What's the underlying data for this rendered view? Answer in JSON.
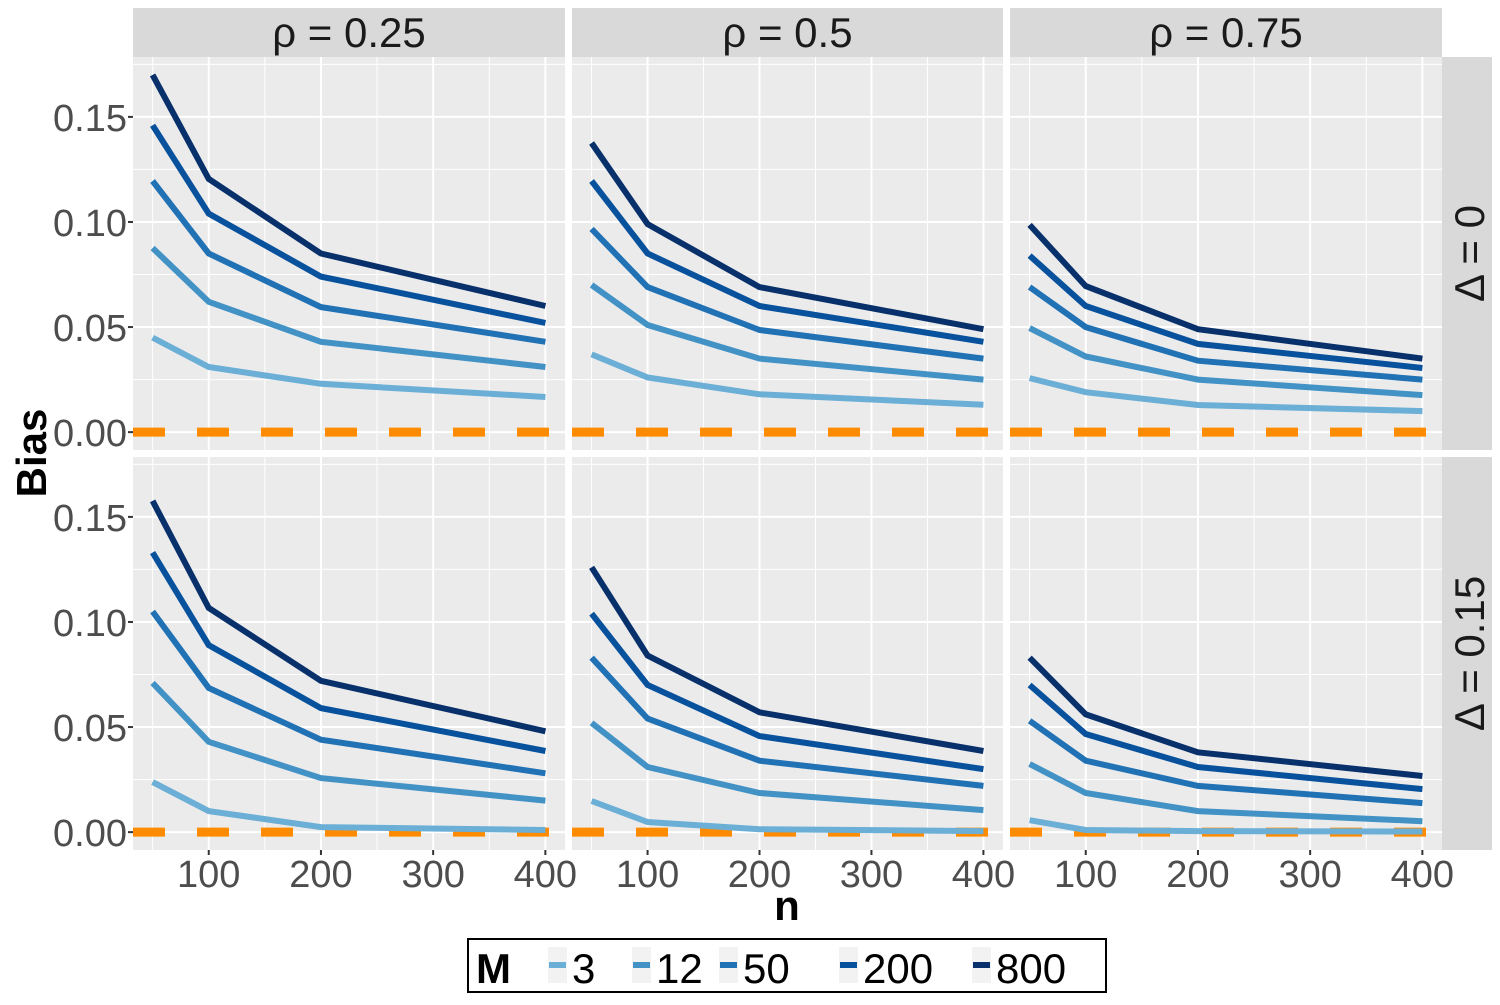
{
  "chart_data": {
    "type": "line",
    "ylabel": "Bias",
    "xlabel": "n",
    "x": [
      50,
      100,
      200,
      400
    ],
    "xlim": [
      32.5,
      417.5
    ],
    "ylim": [
      -0.0085,
      0.1785
    ],
    "x_ticks": [
      100,
      200,
      300,
      400
    ],
    "x_tick_labels": [
      "100",
      "200",
      "300",
      "400"
    ],
    "y_ticks": [
      0,
      0.05,
      0.1,
      0.15
    ],
    "y_tick_labels": [
      "0.00",
      "0.05",
      "0.10",
      "0.15"
    ],
    "grid": true,
    "reference_line": {
      "y": 0,
      "style": "dashed",
      "color": "#ff8c00"
    },
    "col_facets": [
      "ρ = 0.25",
      "ρ = 0.5",
      "ρ = 0.75"
    ],
    "row_facets": [
      "Δ = 0",
      "Δ = 0.15"
    ],
    "legend": {
      "title": "M",
      "placement": "bottom",
      "entries": [
        "3",
        "12",
        "50",
        "200",
        "800"
      ]
    },
    "colors": {
      "3": "#6baed6",
      "12": "#4292c6",
      "50": "#2171b5",
      "200": "#08519c",
      "800": "#08306b"
    },
    "panels": [
      {
        "row": 0,
        "col": 0,
        "series": [
          {
            "name": "3",
            "values": [
              0.045,
              0.031,
              0.023,
              0.0167
            ]
          },
          {
            "name": "12",
            "values": [
              0.0876,
              0.062,
              0.043,
              0.031
            ]
          },
          {
            "name": "50",
            "values": [
              0.1195,
              0.085,
              0.0595,
              0.043
            ]
          },
          {
            "name": "200",
            "values": [
              0.146,
              0.104,
              0.074,
              0.052
            ]
          },
          {
            "name": "800",
            "values": [
              0.17,
              0.1205,
              0.085,
              0.06
            ]
          }
        ]
      },
      {
        "row": 0,
        "col": 1,
        "series": [
          {
            "name": "3",
            "values": [
              0.037,
              0.026,
              0.018,
              0.013
            ]
          },
          {
            "name": "12",
            "values": [
              0.07,
              0.051,
              0.035,
              0.025
            ]
          },
          {
            "name": "50",
            "values": [
              0.0967,
              0.069,
              0.0486,
              0.035
            ]
          },
          {
            "name": "200",
            "values": [
              0.1195,
              0.085,
              0.06,
              0.043
            ]
          },
          {
            "name": "800",
            "values": [
              0.1376,
              0.099,
              0.069,
              0.049
            ]
          }
        ]
      },
      {
        "row": 0,
        "col": 2,
        "series": [
          {
            "name": "3",
            "values": [
              0.0257,
              0.019,
              0.0129,
              0.01
            ]
          },
          {
            "name": "12",
            "values": [
              0.0495,
              0.036,
              0.025,
              0.0176
            ]
          },
          {
            "name": "50",
            "values": [
              0.069,
              0.05,
              0.034,
              0.025
            ]
          },
          {
            "name": "200",
            "values": [
              0.084,
              0.06,
              0.042,
              0.0305
            ]
          },
          {
            "name": "800",
            "values": [
              0.0986,
              0.0695,
              0.049,
              0.035
            ]
          }
        ]
      },
      {
        "row": 1,
        "col": 0,
        "series": [
          {
            "name": "3",
            "values": [
              0.0238,
              0.01,
              0.0024,
              0.001
            ]
          },
          {
            "name": "12",
            "values": [
              0.071,
              0.043,
              0.0257,
              0.015
            ]
          },
          {
            "name": "50",
            "values": [
              0.105,
              0.0686,
              0.044,
              0.028
            ]
          },
          {
            "name": "200",
            "values": [
              0.133,
              0.089,
              0.059,
              0.0386
            ]
          },
          {
            "name": "800",
            "values": [
              0.1576,
              0.1067,
              0.072,
              0.048
            ]
          }
        ]
      },
      {
        "row": 1,
        "col": 1,
        "series": [
          {
            "name": "3",
            "values": [
              0.0148,
              0.0048,
              0.0014,
              0.0005
            ]
          },
          {
            "name": "12",
            "values": [
              0.052,
              0.031,
              0.0186,
              0.0105
            ]
          },
          {
            "name": "50",
            "values": [
              0.083,
              0.054,
              0.034,
              0.022
            ]
          },
          {
            "name": "200",
            "values": [
              0.104,
              0.07,
              0.0457,
              0.03
            ]
          },
          {
            "name": "800",
            "values": [
              0.126,
              0.084,
              0.057,
              0.0386
            ]
          }
        ]
      },
      {
        "row": 1,
        "col": 2,
        "series": [
          {
            "name": "3",
            "values": [
              0.0057,
              0.001,
              0.0005,
              0.0003
            ]
          },
          {
            "name": "12",
            "values": [
              0.0324,
              0.0186,
              0.01,
              0.0052
            ]
          },
          {
            "name": "50",
            "values": [
              0.053,
              0.034,
              0.022,
              0.0138
            ]
          },
          {
            "name": "200",
            "values": [
              0.07,
              0.0467,
              0.031,
              0.0205
            ]
          },
          {
            "name": "800",
            "values": [
              0.083,
              0.056,
              0.038,
              0.0267
            ]
          }
        ]
      }
    ]
  }
}
